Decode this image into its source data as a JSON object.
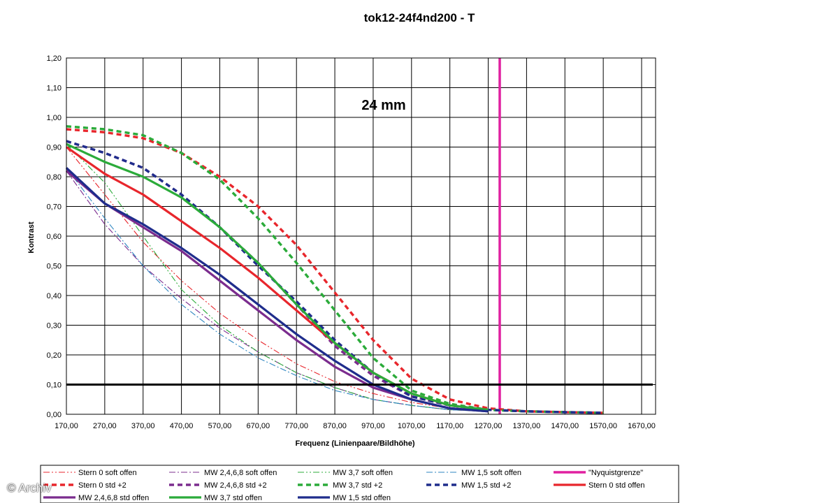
{
  "chart_data": {
    "type": "line",
    "title": "tok12-24f4nd200 - T",
    "annotation": "24 mm",
    "xlabel": "Frequenz (Linienpaare/Bildhöhe)",
    "ylabel": "Kontrast",
    "xlim": [
      170,
      1700
    ],
    "ylim": [
      0,
      1.2
    ],
    "x_ticks": [
      "170,00",
      "270,00",
      "370,00",
      "470,00",
      "570,00",
      "670,00",
      "770,00",
      "870,00",
      "970,00",
      "1070,00",
      "1170,00",
      "1270,00",
      "1370,00",
      "1470,00",
      "1570,00",
      "1670,00"
    ],
    "y_ticks": [
      "0,00",
      "0,10",
      "0,20",
      "0,30",
      "0,40",
      "0,50",
      "0,60",
      "0,70",
      "0,80",
      "0,90",
      "1,00",
      "1,10",
      "1,20"
    ],
    "grid": true,
    "reference_lines": [
      {
        "axis": "y",
        "value": 0.1,
        "color": "#000000"
      }
    ],
    "legend_placement": "bottom",
    "series": [
      {
        "name": "Stern 0 soft offen",
        "color": "#e8262c",
        "style": "dashdotdot",
        "x": [
          170,
          270,
          370,
          470,
          570,
          670,
          770,
          870,
          970,
          1070,
          1170,
          1270
        ],
        "y": [
          0.9,
          0.74,
          0.58,
          0.45,
          0.34,
          0.25,
          0.17,
          0.11,
          0.07,
          0.04,
          0.02,
          0.01
        ]
      },
      {
        "name": "MW 2,4,6,8 soft offen",
        "color": "#7b2c8e",
        "style": "dashdot",
        "x": [
          170,
          270,
          370,
          470,
          570,
          670,
          770,
          870,
          970,
          1070,
          1170,
          1270
        ],
        "y": [
          0.82,
          0.64,
          0.5,
          0.39,
          0.29,
          0.21,
          0.14,
          0.09,
          0.05,
          0.03,
          0.015,
          0.01
        ]
      },
      {
        "name": "MW 3,7 soft offen",
        "color": "#2bab3a",
        "style": "dashdotdot",
        "x": [
          170,
          270,
          370,
          470,
          570,
          670,
          770,
          870,
          970,
          1070,
          1170,
          1270
        ],
        "y": [
          0.91,
          0.78,
          0.6,
          0.42,
          0.3,
          0.21,
          0.14,
          0.09,
          0.05,
          0.03,
          0.015,
          0.01
        ]
      },
      {
        "name": "MW 1,5 soft offen",
        "color": "#2e86c1",
        "style": "dashdot",
        "x": [
          170,
          270,
          370,
          470,
          570,
          670,
          770,
          870,
          970,
          1070,
          1170,
          1270
        ],
        "y": [
          0.83,
          0.66,
          0.5,
          0.37,
          0.27,
          0.19,
          0.13,
          0.08,
          0.05,
          0.03,
          0.015,
          0.01
        ]
      },
      {
        "name": "\"Nyquistgrenze\"",
        "color": "#e020a0",
        "style": "solid",
        "x": [
          1300,
          1300
        ],
        "y": [
          0,
          1.2
        ]
      },
      {
        "name": "Stern 0 std +2",
        "color": "#e8262c",
        "style": "dash",
        "x": [
          170,
          270,
          370,
          470,
          570,
          670,
          770,
          870,
          970,
          1070,
          1170,
          1270,
          1370,
          1470,
          1570
        ],
        "y": [
          0.96,
          0.95,
          0.93,
          0.88,
          0.8,
          0.7,
          0.57,
          0.41,
          0.25,
          0.12,
          0.05,
          0.02,
          0.01,
          0.007,
          0.005
        ]
      },
      {
        "name": "MW 2,4,6,8 std +2",
        "color": "#7b2c8e",
        "style": "dash",
        "x": [
          170,
          270,
          370,
          470,
          570,
          670,
          770,
          870,
          970,
          1070,
          1170,
          1270,
          1370,
          1470,
          1570
        ],
        "y": [
          0.92,
          0.88,
          0.83,
          0.74,
          0.63,
          0.51,
          0.37,
          0.23,
          0.13,
          0.06,
          0.03,
          0.015,
          0.01,
          0.007,
          0.005
        ]
      },
      {
        "name": "MW 3,7 std +2",
        "color": "#2bab3a",
        "style": "dash",
        "x": [
          170,
          270,
          370,
          470,
          570,
          670,
          770,
          870,
          970,
          1070,
          1170,
          1270,
          1370,
          1470,
          1570
        ],
        "y": [
          0.97,
          0.96,
          0.94,
          0.88,
          0.79,
          0.66,
          0.51,
          0.35,
          0.19,
          0.08,
          0.035,
          0.015,
          0.01,
          0.007,
          0.005
        ]
      },
      {
        "name": "MW 1,5 std +2",
        "color": "#1f2d8c",
        "style": "dash",
        "x": [
          170,
          270,
          370,
          470,
          570,
          670,
          770,
          870,
          970,
          1070,
          1170,
          1270,
          1370,
          1470,
          1570
        ],
        "y": [
          0.92,
          0.88,
          0.83,
          0.74,
          0.63,
          0.5,
          0.38,
          0.25,
          0.14,
          0.06,
          0.03,
          0.015,
          0.01,
          0.007,
          0.005
        ]
      },
      {
        "name": "Stern 0 std offen",
        "color": "#e8262c",
        "style": "solid",
        "x": [
          170,
          270,
          370,
          470,
          570,
          670,
          770,
          870,
          970,
          1070,
          1170,
          1270
        ],
        "y": [
          0.9,
          0.81,
          0.74,
          0.65,
          0.56,
          0.46,
          0.35,
          0.24,
          0.14,
          0.07,
          0.03,
          0.015
        ]
      },
      {
        "name": "MW 2,4,6,8 std offen",
        "color": "#7b2c8e",
        "style": "solid",
        "x": [
          170,
          270,
          370,
          470,
          570,
          670,
          770,
          870,
          970,
          1070,
          1170,
          1270
        ],
        "y": [
          0.82,
          0.71,
          0.63,
          0.55,
          0.45,
          0.35,
          0.25,
          0.16,
          0.09,
          0.05,
          0.02,
          0.01
        ]
      },
      {
        "name": "MW 3,7 std offen",
        "color": "#2bab3a",
        "style": "solid",
        "x": [
          170,
          270,
          370,
          470,
          570,
          670,
          770,
          870,
          970,
          1070,
          1170,
          1270
        ],
        "y": [
          0.91,
          0.85,
          0.8,
          0.73,
          0.63,
          0.51,
          0.37,
          0.24,
          0.14,
          0.07,
          0.03,
          0.015
        ]
      },
      {
        "name": "MW 1,5 std offen",
        "color": "#1f2d8c",
        "style": "solid",
        "x": [
          170,
          270,
          370,
          470,
          570,
          670,
          770,
          870,
          970,
          1070,
          1170,
          1270
        ],
        "y": [
          0.83,
          0.71,
          0.64,
          0.56,
          0.47,
          0.37,
          0.27,
          0.18,
          0.1,
          0.05,
          0.02,
          0.01
        ]
      }
    ]
  },
  "watermark": "© Archiv"
}
